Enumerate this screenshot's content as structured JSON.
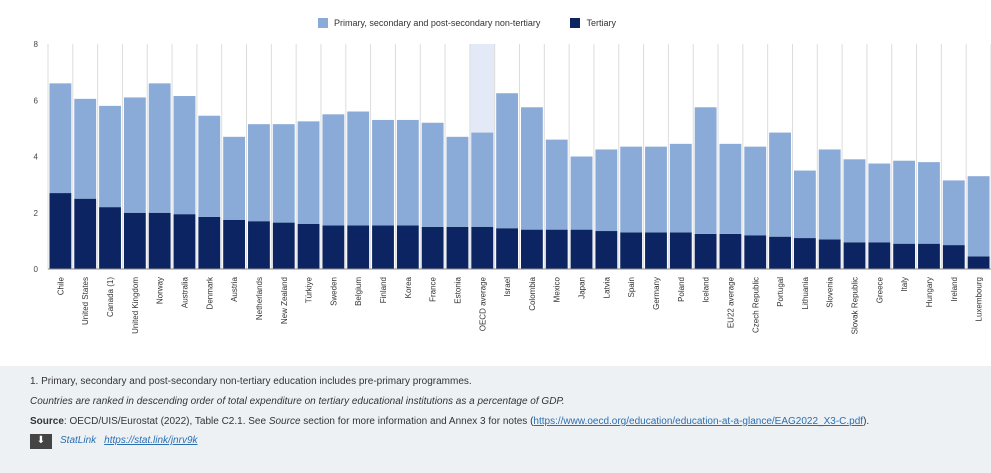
{
  "chart_data": {
    "type": "bar",
    "stacked": true,
    "legend_position": "top-center",
    "ylim": [
      0,
      8
    ],
    "yticks": [
      "0",
      "2",
      "4",
      "6",
      "8"
    ],
    "highlighted_category": "OECD average",
    "categories": [
      "Chile",
      "United States",
      "Canada (1)",
      "United Kingdom",
      "Norway",
      "Australia",
      "Denmark",
      "Austria",
      "Netherlands",
      "New Zealand",
      "Türkiye",
      "Sweden",
      "Belgium",
      "Finland",
      "Korea",
      "France",
      "Estonia",
      "OECD average",
      "Israel",
      "Colombia",
      "Mexico",
      "Japan",
      "Latvia",
      "Spain",
      "Germany",
      "Poland",
      "Iceland",
      "EU22 average",
      "Czech Republic",
      "Portugal",
      "Lithuania",
      "Slovenia",
      "Slovak Republic",
      "Greece",
      "Italy",
      "Hungary",
      "Ireland",
      "Luxembourg"
    ],
    "series": [
      {
        "name": "Tertiary",
        "color": "#0c2461",
        "values": [
          2.7,
          2.5,
          2.2,
          2.0,
          2.0,
          1.95,
          1.85,
          1.75,
          1.7,
          1.65,
          1.6,
          1.55,
          1.55,
          1.55,
          1.55,
          1.5,
          1.5,
          1.5,
          1.45,
          1.4,
          1.4,
          1.4,
          1.35,
          1.3,
          1.3,
          1.3,
          1.25,
          1.25,
          1.2,
          1.15,
          1.1,
          1.05,
          0.95,
          0.95,
          0.9,
          0.9,
          0.85,
          0.45
        ]
      },
      {
        "name": "Primary, secondary and post-secondary non-tertiary",
        "color": "#8aabd8",
        "values": [
          3.9,
          3.55,
          3.6,
          4.1,
          4.6,
          4.2,
          3.6,
          2.95,
          3.45,
          3.5,
          3.65,
          3.95,
          4.05,
          3.75,
          3.75,
          3.7,
          3.2,
          3.35,
          4.8,
          4.35,
          3.2,
          2.6,
          2.9,
          3.05,
          3.05,
          3.15,
          4.5,
          3.2,
          3.15,
          3.7,
          2.4,
          3.2,
          2.95,
          2.8,
          2.95,
          2.9,
          2.3,
          2.85
        ]
      }
    ]
  },
  "notes": {
    "note1": "1. Primary, secondary and post-secondary non-tertiary education includes pre-primary programmes.",
    "ranking": "Countries are ranked in descending order of total expenditure on tertiary educational institutions as a percentage of GDP.",
    "source_label": "Source",
    "source_text": ": OECD/UIS/Eurostat (2022), Table C2.1. See ",
    "source_italic": "Source",
    "source_text2": " section for more information and Annex 3 for notes (",
    "source_url": "https://www.oecd.org/education/education-at-a-glance/EAG2022_X3-C.pdf",
    "source_end": ").",
    "statlink_label": "StatLink",
    "statlink_url": "https://stat.link/jnrv9k",
    "download_icon": "download-icon"
  }
}
